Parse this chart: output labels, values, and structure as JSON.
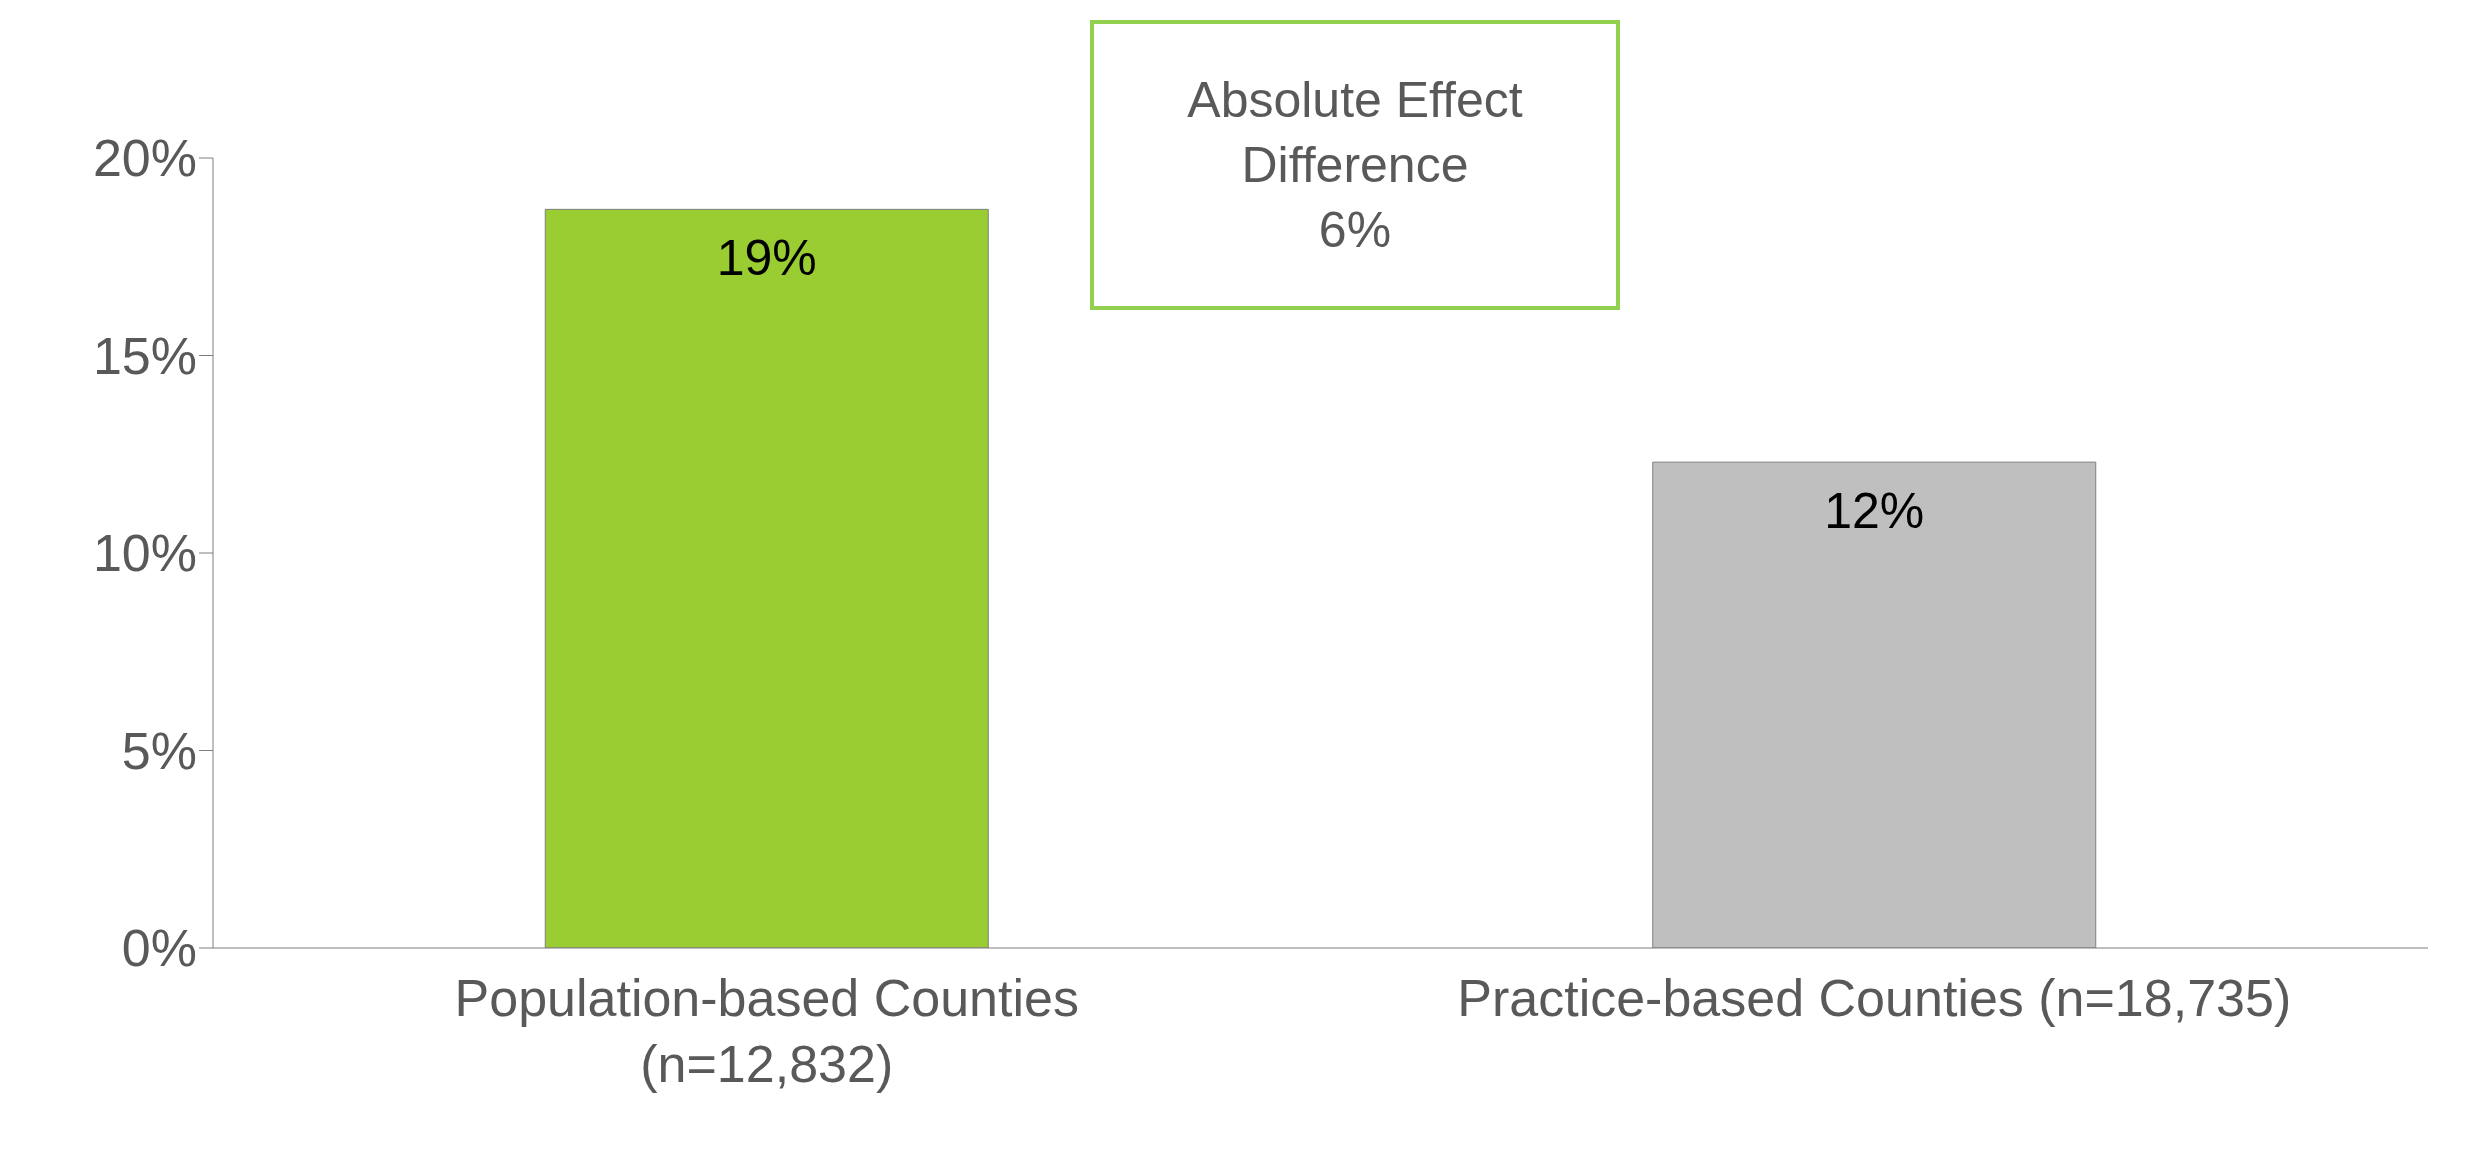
{
  "chart_data": {
    "type": "bar",
    "categories": [
      "Population-based Counties (n=12,832)",
      "Practice-based Counties (n=18,735)"
    ],
    "values": [
      18.7,
      12.3
    ],
    "value_labels": [
      "19%",
      "12%"
    ],
    "colors": [
      "#9acd32",
      "#bfbfbf"
    ],
    "ylim": [
      0,
      20
    ],
    "yticks": [
      {
        "value": 0,
        "label": "0%"
      },
      {
        "value": 5,
        "label": "5%"
      },
      {
        "value": 10,
        "label": "10%"
      },
      {
        "value": 15,
        "label": "15%"
      },
      {
        "value": 20,
        "label": "20%"
      }
    ],
    "annotations": [
      "Absolute Effect\nDifference\n6%"
    ],
    "grid": false,
    "legend": false
  }
}
